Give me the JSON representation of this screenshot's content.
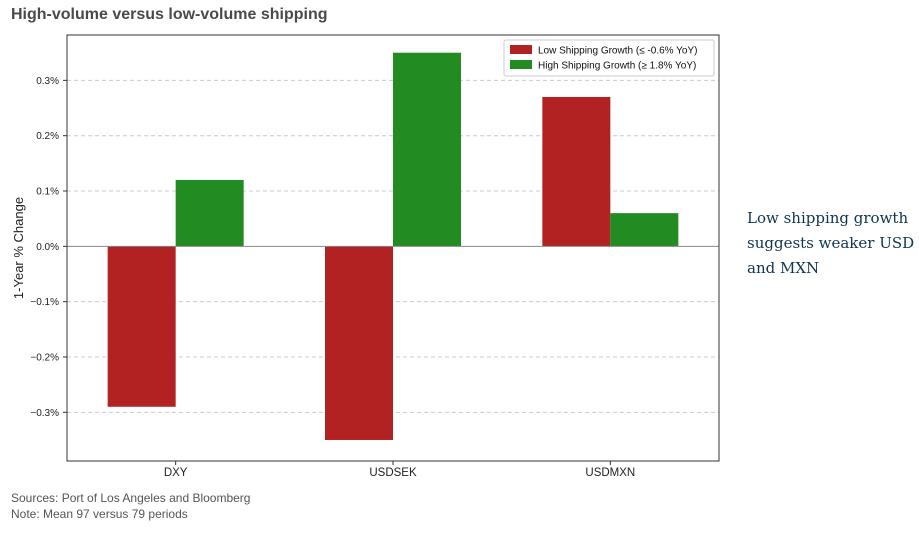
{
  "title": "High-volume versus low-volume shipping",
  "annotation": "Low shipping growth suggests weaker USD and MXN",
  "footer": {
    "sources": "Sources: Port of Los Angeles and Bloomberg",
    "note": "Note: Mean 97 versus 79 periods"
  },
  "colors": {
    "low": "#b22222",
    "high": "#228b22"
  },
  "chart_data": {
    "type": "bar",
    "title": "High-volume versus low-volume shipping",
    "xlabel": "",
    "ylabel": "1-Year % Change",
    "categories": [
      "DXY",
      "USDSEK",
      "USDMXN"
    ],
    "series": [
      {
        "name": "Low Shipping Growth (≤ -0.6% YoY)",
        "values": [
          -0.29,
          -0.35,
          0.27
        ]
      },
      {
        "name": "High Shipping Growth (≥ 1.8% YoY)",
        "values": [
          0.12,
          0.35,
          0.06
        ]
      }
    ],
    "yticks": [
      -0.3,
      -0.2,
      -0.1,
      0.0,
      0.1,
      0.2,
      0.3
    ],
    "ytick_labels": [
      "−0.3%",
      "−0.2%",
      "−0.1%",
      "0.0%",
      "0.1%",
      "0.2%",
      "0.3%"
    ],
    "ylim": [
      -0.388,
      0.382
    ],
    "grid": true,
    "legend_position": "top-right"
  }
}
